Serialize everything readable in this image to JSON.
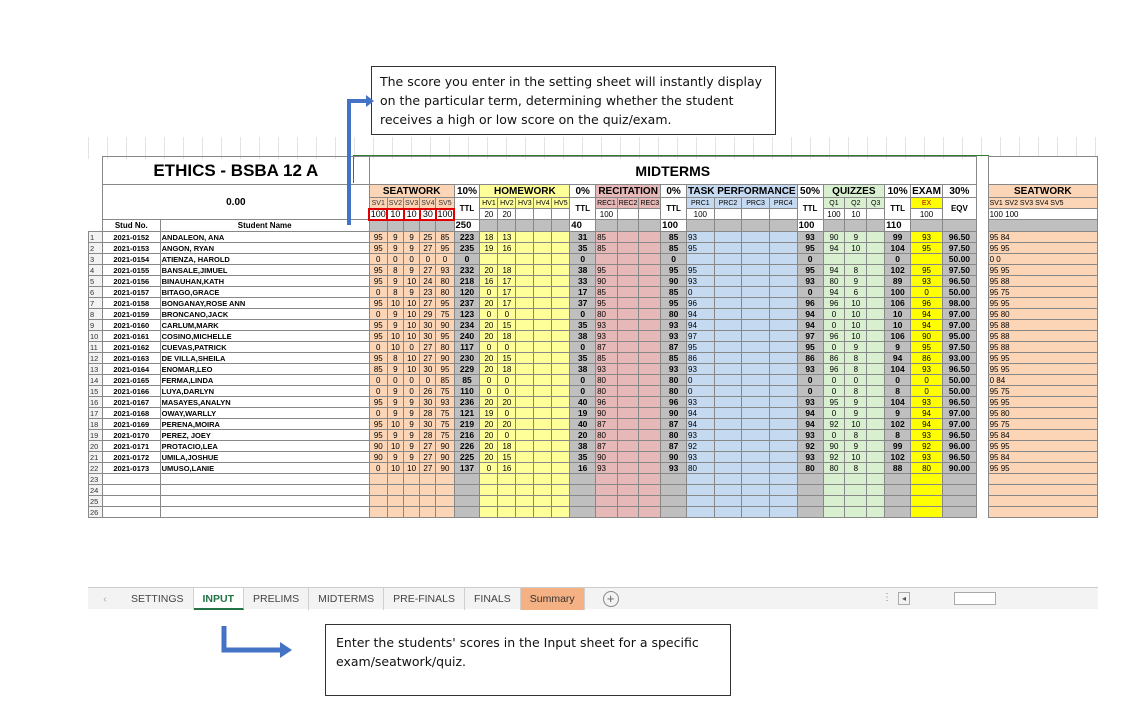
{
  "annotations": {
    "top": "The score you enter in the setting sheet will instantly display on the particular term, determining whether the student receives a high or low score on the quiz/exam.",
    "bottom": "Enter the students' scores in the Input sheet for a specific exam/seatwork/quiz."
  },
  "sheet": {
    "title": "ETHICS  - BSBA 12 A",
    "term": "MIDTERMS",
    "average_label": "0.00",
    "col_stud_no": "Stud No.",
    "col_name": "Student Name",
    "sections": {
      "seatwork": "SEATWORK",
      "seatwork_pct": "10%",
      "homework": "HOMEWORK",
      "homework_pct": "0%",
      "recitation": "RECITATION",
      "recitation_pct": "0%",
      "task": "TASK PERFORMANCE",
      "task_pct": "50%",
      "quizzes": "QUIZZES",
      "quizzes_pct": "10%",
      "exam": "EXAM",
      "exam_pct": "30%",
      "next_seatwork": "SEATWORK"
    },
    "sub": {
      "sw": [
        "SV1",
        "SV2",
        "SV3",
        "SV4",
        "SV5"
      ],
      "hw": [
        "HV1",
        "HV2",
        "HV3",
        "HV4",
        "HV5"
      ],
      "rc": [
        "REC1",
        "REC2",
        "REC3"
      ],
      "tp": [
        "PRC1",
        "PRC2",
        "PRC3",
        "PRC4"
      ],
      "qz": [
        "Q1",
        "Q2",
        "Q3"
      ],
      "ex": "EX",
      "eqv": "EQV",
      "ttl": "TTL",
      "sv_next": [
        "SV1",
        "SV2",
        "SV3",
        "SV4",
        "SV5"
      ]
    },
    "max": {
      "sw": [
        "100",
        "10",
        "10",
        "30",
        "100"
      ],
      "sw_ttl": "250",
      "hw": [
        "20",
        "20",
        "",
        "",
        ""
      ],
      "hw_ttl": "40",
      "rc": [
        "100",
        "",
        ""
      ],
      "rc_ttl": "100",
      "tp": [
        "100",
        "",
        "",
        ""
      ],
      "tp_ttl": "100",
      "qz": [
        "100",
        "10",
        ""
      ],
      "qz_ttl": "110",
      "ex": "100",
      "sv_next": [
        "100",
        "100",
        "",
        "",
        ""
      ]
    },
    "students": [
      {
        "no": "2021-0152",
        "name": "ANDALEON, ANA",
        "sw": [
          "95",
          "9",
          "9",
          "25",
          "85"
        ],
        "swt": "223",
        "hw": [
          "18",
          "13"
        ],
        "hwt": "31",
        "rc": "85",
        "rct": "85",
        "tp": "93",
        "tpt": "93",
        "qz": [
          "90",
          "9"
        ],
        "qzt": "99",
        "ex": "93",
        "eqv": "96.50",
        "nx": [
          "95",
          "84"
        ]
      },
      {
        "no": "2021-0153",
        "name": "ANGON, RYAN",
        "sw": [
          "95",
          "9",
          "9",
          "27",
          "95"
        ],
        "swt": "235",
        "hw": [
          "19",
          "16"
        ],
        "hwt": "35",
        "rc": "85",
        "rct": "85",
        "tp": "95",
        "tpt": "95",
        "qz": [
          "94",
          "10"
        ],
        "qzt": "104",
        "ex": "95",
        "eqv": "97.50",
        "nx": [
          "95",
          "95"
        ]
      },
      {
        "no": "2021-0154",
        "name": "ATIENZA, HAROLD",
        "sw": [
          "0",
          "0",
          "0",
          "0",
          "0"
        ],
        "swt": "0",
        "hw": [
          "",
          ""
        ],
        "hwt": "0",
        "rc": "",
        "rct": "0",
        "tp": "",
        "tpt": "0",
        "qz": [
          "",
          ""
        ],
        "qzt": "0",
        "ex": "",
        "eqv": "50.00",
        "nx": [
          "0",
          "0"
        ]
      },
      {
        "no": "2021-0155",
        "name": "BANSALE,JIMUEL",
        "sw": [
          "95",
          "8",
          "9",
          "27",
          "93"
        ],
        "swt": "232",
        "hw": [
          "20",
          "18"
        ],
        "hwt": "38",
        "rc": "95",
        "rct": "95",
        "tp": "95",
        "tpt": "95",
        "qz": [
          "94",
          "8"
        ],
        "qzt": "102",
        "ex": "95",
        "eqv": "97.50",
        "nx": [
          "95",
          "95"
        ]
      },
      {
        "no": "2021-0156",
        "name": "BINAUHAN,KATH",
        "sw": [
          "95",
          "9",
          "10",
          "24",
          "80"
        ],
        "swt": "218",
        "hw": [
          "16",
          "17"
        ],
        "hwt": "33",
        "rc": "90",
        "rct": "90",
        "tp": "93",
        "tpt": "93",
        "qz": [
          "80",
          "9"
        ],
        "qzt": "89",
        "ex": "93",
        "eqv": "96.50",
        "nx": [
          "95",
          "88"
        ]
      },
      {
        "no": "2021-0157",
        "name": "BITAGO,GRACE",
        "sw": [
          "0",
          "8",
          "9",
          "23",
          "80"
        ],
        "swt": "120",
        "hw": [
          "0",
          "17"
        ],
        "hwt": "17",
        "rc": "85",
        "rct": "85",
        "tp": "0",
        "tpt": "0",
        "qz": [
          "94",
          "6"
        ],
        "qzt": "100",
        "ex": "0",
        "eqv": "50.00",
        "nx": [
          "95",
          "75"
        ]
      },
      {
        "no": "2021-0158",
        "name": "BONGANAY,ROSE ANN",
        "sw": [
          "95",
          "10",
          "10",
          "27",
          "95"
        ],
        "swt": "237",
        "hw": [
          "20",
          "17"
        ],
        "hwt": "37",
        "rc": "95",
        "rct": "95",
        "tp": "96",
        "tpt": "96",
        "qz": [
          "96",
          "10"
        ],
        "qzt": "106",
        "ex": "96",
        "eqv": "98.00",
        "nx": [
          "95",
          "95"
        ]
      },
      {
        "no": "2021-0159",
        "name": "BRONCANO,JACK",
        "sw": [
          "0",
          "9",
          "10",
          "29",
          "75"
        ],
        "swt": "123",
        "hw": [
          "0",
          "0"
        ],
        "hwt": "0",
        "rc": "80",
        "rct": "80",
        "tp": "94",
        "tpt": "94",
        "qz": [
          "0",
          "10"
        ],
        "qzt": "10",
        "ex": "94",
        "eqv": "97.00",
        "nx": [
          "95",
          "80"
        ]
      },
      {
        "no": "2021-0160",
        "name": "CARLUM,MARK",
        "sw": [
          "95",
          "9",
          "10",
          "30",
          "90"
        ],
        "swt": "234",
        "hw": [
          "20",
          "15"
        ],
        "hwt": "35",
        "rc": "93",
        "rct": "93",
        "tp": "94",
        "tpt": "94",
        "qz": [
          "0",
          "10"
        ],
        "qzt": "10",
        "ex": "94",
        "eqv": "97.00",
        "nx": [
          "95",
          "88"
        ]
      },
      {
        "no": "2021-0161",
        "name": "COSINO,MICHELLE",
        "sw": [
          "95",
          "10",
          "10",
          "30",
          "95"
        ],
        "swt": "240",
        "hw": [
          "20",
          "18"
        ],
        "hwt": "38",
        "rc": "93",
        "rct": "93",
        "tp": "97",
        "tpt": "97",
        "qz": [
          "96",
          "10"
        ],
        "qzt": "106",
        "ex": "90",
        "eqv": "95.00",
        "nx": [
          "95",
          "88"
        ]
      },
      {
        "no": "2021-0162",
        "name": "CUEVAS,PATRICK",
        "sw": [
          "0",
          "10",
          "0",
          "27",
          "80"
        ],
        "swt": "117",
        "hw": [
          "0",
          "0"
        ],
        "hwt": "0",
        "rc": "87",
        "rct": "87",
        "tp": "95",
        "tpt": "95",
        "qz": [
          "0",
          "9"
        ],
        "qzt": "9",
        "ex": "95",
        "eqv": "97.50",
        "nx": [
          "95",
          "88"
        ]
      },
      {
        "no": "2021-0163",
        "name": "DE VILLA,SHEILA",
        "sw": [
          "95",
          "8",
          "10",
          "27",
          "90"
        ],
        "swt": "230",
        "hw": [
          "20",
          "15"
        ],
        "hwt": "35",
        "rc": "85",
        "rct": "85",
        "tp": "86",
        "tpt": "86",
        "qz": [
          "86",
          "8"
        ],
        "qzt": "94",
        "ex": "86",
        "eqv": "93.00",
        "nx": [
          "95",
          "95"
        ]
      },
      {
        "no": "2021-0164",
        "name": "ENOMAR,LEO",
        "sw": [
          "85",
          "9",
          "10",
          "30",
          "95"
        ],
        "swt": "229",
        "hw": [
          "20",
          "18"
        ],
        "hwt": "38",
        "rc": "93",
        "rct": "93",
        "tp": "93",
        "tpt": "93",
        "qz": [
          "96",
          "8"
        ],
        "qzt": "104",
        "ex": "93",
        "eqv": "96.50",
        "nx": [
          "95",
          "95"
        ]
      },
      {
        "no": "2021-0165",
        "name": "FERMA,LINDA",
        "sw": [
          "0",
          "0",
          "0",
          "0",
          "85"
        ],
        "swt": "85",
        "hw": [
          "0",
          "0"
        ],
        "hwt": "0",
        "rc": "80",
        "rct": "80",
        "tp": "0",
        "tpt": "0",
        "qz": [
          "0",
          "0"
        ],
        "qzt": "0",
        "ex": "0",
        "eqv": "50.00",
        "nx": [
          "0",
          "84"
        ]
      },
      {
        "no": "2021-0166",
        "name": "LUYA,DARLYN",
        "sw": [
          "0",
          "9",
          "0",
          "26",
          "75"
        ],
        "swt": "110",
        "hw": [
          "0",
          "0"
        ],
        "hwt": "0",
        "rc": "80",
        "rct": "80",
        "tp": "0",
        "tpt": "0",
        "qz": [
          "0",
          "8"
        ],
        "qzt": "8",
        "ex": "0",
        "eqv": "50.00",
        "nx": [
          "95",
          "75"
        ]
      },
      {
        "no": "2021-0167",
        "name": "MASAYES,ANALYN",
        "sw": [
          "95",
          "9",
          "9",
          "30",
          "93"
        ],
        "swt": "236",
        "hw": [
          "20",
          "20"
        ],
        "hwt": "40",
        "rc": "96",
        "rct": "96",
        "tp": "93",
        "tpt": "93",
        "qz": [
          "95",
          "9"
        ],
        "qzt": "104",
        "ex": "93",
        "eqv": "96.50",
        "nx": [
          "95",
          "95"
        ]
      },
      {
        "no": "2021-0168",
        "name": "OWAY,WARLLY",
        "sw": [
          "0",
          "9",
          "9",
          "28",
          "75"
        ],
        "swt": "121",
        "hw": [
          "19",
          "0"
        ],
        "hwt": "19",
        "rc": "90",
        "rct": "90",
        "tp": "94",
        "tpt": "94",
        "qz": [
          "0",
          "9"
        ],
        "qzt": "9",
        "ex": "94",
        "eqv": "97.00",
        "nx": [
          "95",
          "80"
        ]
      },
      {
        "no": "2021-0169",
        "name": "PERENA,MOIRA",
        "sw": [
          "95",
          "10",
          "9",
          "30",
          "75"
        ],
        "swt": "219",
        "hw": [
          "20",
          "20"
        ],
        "hwt": "40",
        "rc": "87",
        "rct": "87",
        "tp": "94",
        "tpt": "94",
        "qz": [
          "92",
          "10"
        ],
        "qzt": "102",
        "ex": "94",
        "eqv": "97.00",
        "nx": [
          "95",
          "75"
        ]
      },
      {
        "no": "2021-0170",
        "name": "PEREZ, JOEY",
        "sw": [
          "95",
          "9",
          "9",
          "28",
          "75"
        ],
        "swt": "216",
        "hw": [
          "20",
          "0"
        ],
        "hwt": "20",
        "rc": "80",
        "rct": "80",
        "tp": "93",
        "tpt": "93",
        "qz": [
          "0",
          "8"
        ],
        "qzt": "8",
        "ex": "93",
        "eqv": "96.50",
        "nx": [
          "95",
          "84"
        ]
      },
      {
        "no": "2021-0171",
        "name": "PROTACIO,LEA",
        "sw": [
          "90",
          "10",
          "9",
          "27",
          "90"
        ],
        "swt": "226",
        "hw": [
          "20",
          "18"
        ],
        "hwt": "38",
        "rc": "87",
        "rct": "87",
        "tp": "92",
        "tpt": "92",
        "qz": [
          "90",
          "9"
        ],
        "qzt": "99",
        "ex": "92",
        "eqv": "96.00",
        "nx": [
          "95",
          "95"
        ]
      },
      {
        "no": "2021-0172",
        "name": "UMILA,JOSHUE",
        "sw": [
          "90",
          "9",
          "9",
          "27",
          "90"
        ],
        "swt": "225",
        "hw": [
          "20",
          "15"
        ],
        "hwt": "35",
        "rc": "90",
        "rct": "90",
        "tp": "93",
        "tpt": "93",
        "qz": [
          "92",
          "10"
        ],
        "qzt": "102",
        "ex": "93",
        "eqv": "96.50",
        "nx": [
          "95",
          "84"
        ]
      },
      {
        "no": "2021-0173",
        "name": "UMUSO,LANIE",
        "sw": [
          "0",
          "10",
          "10",
          "27",
          "90"
        ],
        "swt": "137",
        "hw": [
          "0",
          "16"
        ],
        "hwt": "16",
        "rc": "93",
        "rct": "93",
        "tp": "80",
        "tpt": "80",
        "qz": [
          "80",
          "8"
        ],
        "qzt": "88",
        "ex": "80",
        "eqv": "90.00",
        "nx": [
          "95",
          "95"
        ]
      }
    ],
    "row_numbers": [
      "1",
      "2",
      "3",
      "4",
      "5",
      "6",
      "7",
      "8",
      "9",
      "10",
      "11",
      "12",
      "13",
      "14",
      "15",
      "16",
      "17",
      "18",
      "19",
      "20",
      "21",
      "22",
      "23",
      "24",
      "25",
      "26"
    ]
  },
  "tabs": [
    {
      "label": "SETTINGS"
    },
    {
      "label": "INPUT",
      "active": true
    },
    {
      "label": "PRELIMS"
    },
    {
      "label": "MIDTERMS"
    },
    {
      "label": "PRE-FINALS"
    },
    {
      "label": "FINALS"
    },
    {
      "label": "Summary"
    }
  ],
  "colors": {
    "seatwork": "#fbd5b5",
    "homework": "#ffff99",
    "recitation": "#e6b8b7",
    "task": "#c5d9f1",
    "quizzes": "#d8f0d0",
    "exam": "#ffff00",
    "highlight": "#e00000",
    "arrow": "#4472c4"
  }
}
